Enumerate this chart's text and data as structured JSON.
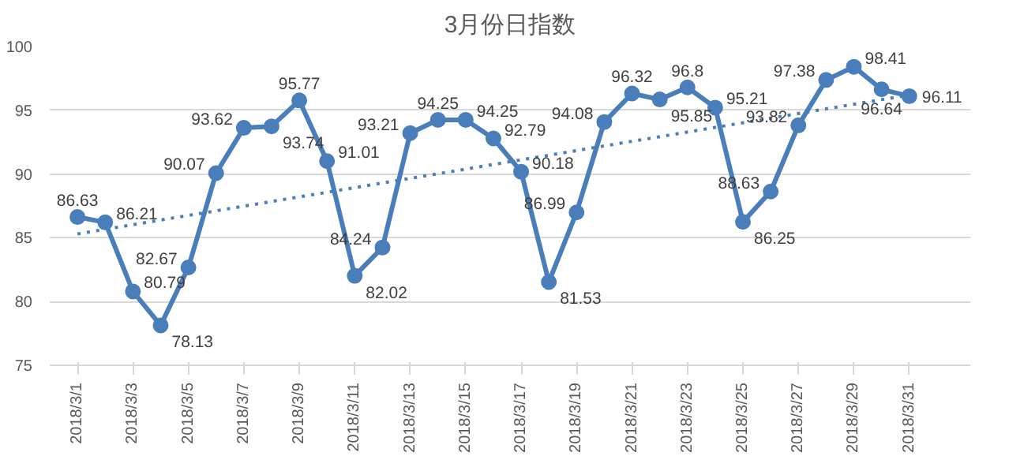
{
  "chart_data": {
    "type": "line",
    "title": "3月份日指数",
    "categories": [
      "2018/3/1",
      null,
      "2018/3/3",
      null,
      "2018/3/5",
      null,
      "2018/3/7",
      null,
      "2018/3/9",
      null,
      "2018/3/11",
      null,
      "2018/3/13",
      null,
      "2018/3/15",
      null,
      "2018/3/17",
      null,
      "2018/3/19",
      null,
      "2018/3/21",
      null,
      "2018/3/23",
      null,
      "2018/3/25",
      null,
      "2018/3/27",
      null,
      "2018/3/29",
      null,
      "2018/3/31"
    ],
    "series": [
      {
        "color": "#4a7ebb",
        "marker": "circle",
        "line_style": "solid",
        "data_labels": true,
        "values": [
          86.63,
          86.21,
          80.79,
          78.13,
          82.67,
          90.07,
          93.62,
          93.74,
          95.77,
          91.01,
          82.02,
          84.24,
          93.21,
          94.25,
          94.25,
          92.79,
          90.18,
          81.53,
          86.99,
          94.08,
          96.32,
          95.85,
          96.8,
          95.21,
          86.25,
          88.63,
          93.82,
          97.38,
          98.41,
          96.64,
          96.11
        ]
      },
      {
        "type": "line",
        "color": "#4a7ebb",
        "marker": "none",
        "line_style": "dotted",
        "x": [
          "2018/3/1",
          "2018/3/31"
        ],
        "values": [
          85.3,
          96.2
        ]
      }
    ],
    "ylim": [
      75,
      100
    ],
    "yticks": [
      75,
      80,
      85,
      90,
      95,
      100
    ],
    "grid": "y"
  }
}
